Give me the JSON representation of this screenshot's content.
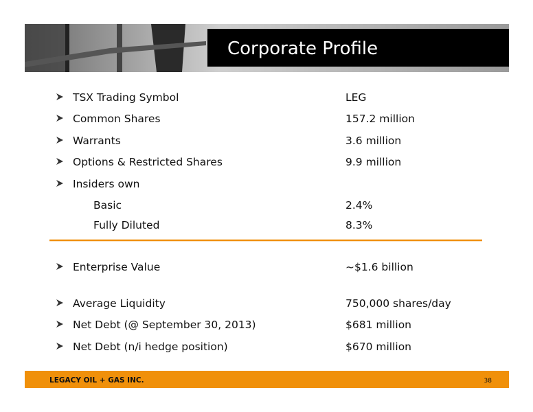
{
  "header": {
    "title": "Corporate Profile"
  },
  "profile": [
    {
      "label": "TSX Trading Symbol",
      "value": "LEG"
    },
    {
      "label": "Common Shares",
      "value": "157.2 million"
    },
    {
      "label": "Warrants",
      "value": "3.6 million"
    },
    {
      "label": "Options & Restricted Shares",
      "value": "9.9 million"
    },
    {
      "label": "Insiders own",
      "sub_items": [
        {
          "label": "Basic",
          "value": "2.4%"
        },
        {
          "label": "Fully Diluted",
          "value": "8.3%"
        }
      ]
    }
  ],
  "metrics": [
    {
      "label": "Enterprise Value",
      "value": "~$1.6 billion"
    },
    {
      "label": "Average Liquidity",
      "value": "750,000 shares/day"
    },
    {
      "label": "Net Debt (@ September 30, 2013)",
      "value": "$681 million"
    },
    {
      "label": "Net Debt (n/i hedge position)",
      "value": "$670 million"
    }
  ],
  "footer": {
    "company": "LEGACY OIL + GAS INC.",
    "page": 38
  }
}
